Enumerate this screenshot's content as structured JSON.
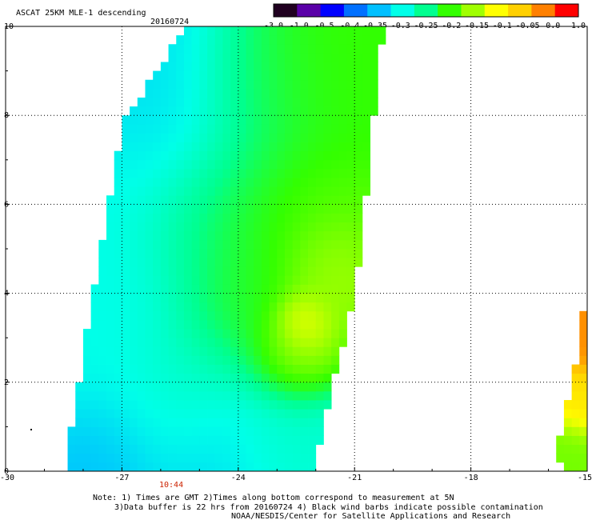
{
  "chart_data": {
    "type": "heatmap",
    "title": "ASCAT 25KM MLE-1 descending",
    "date": "20160724",
    "xlim": [
      -30,
      -15
    ],
    "ylim": [
      0,
      10
    ],
    "x_ticks": [
      "-30",
      "-27",
      "-24",
      "-21",
      "-18",
      "-15"
    ],
    "y_ticks": [
      "0",
      "2",
      "4",
      "6",
      "8",
      "10"
    ],
    "grid": true,
    "colorbar": {
      "ticks": [
        "-3.0",
        "-1.0",
        "-0.5",
        "-0.4",
        "-0.35",
        "-0.3",
        "-0.25",
        "-0.2",
        "-0.15",
        "-0.1",
        "-0.05",
        "0.0",
        "1.0"
      ],
      "colors": [
        "#200020",
        "#5a00a8",
        "#0000ff",
        "#0070ff",
        "#00c0ff",
        "#00ffe8",
        "#00ff90",
        "#33ff00",
        "#a0ff00",
        "#ffff00",
        "#ffd000",
        "#ff8000",
        "#ff0000"
      ]
    },
    "time_label": "10:44",
    "swaths": [
      {
        "name": "main descending swath",
        "polygon": [
          [
            -26.8,
            -0.1
          ],
          [
            -22.1,
            -0.1
          ],
          [
            -20.96,
            4.1
          ],
          [
            -20.3,
            9.6
          ],
          [
            -20.1,
            10.1
          ],
          [
            -25.3,
            10.1
          ],
          [
            -27.0,
            7.8
          ],
          [
            -28.4,
            0.5
          ],
          [
            -28.4,
            -0.1
          ]
        ],
        "field": [
          {
            "x": -26.2,
            "y": 5.7,
            "v": -0.3,
            "r": 2.5
          },
          {
            "x": -25.8,
            "y": 8.3,
            "v": -0.33,
            "r": 1.8
          },
          {
            "x": -27.5,
            "y": 2.5,
            "v": -0.3,
            "r": 2.5
          },
          {
            "x": -24.5,
            "y": 0.5,
            "v": -0.33,
            "r": 2.0
          },
          {
            "x": -27.8,
            "y": 0.2,
            "v": -0.36,
            "r": 1.3
          },
          {
            "x": -25.3,
            "y": 1.9,
            "v": -0.27,
            "r": 1.4
          },
          {
            "x": -23.5,
            "y": 8.4,
            "v": -0.22,
            "r": 1.6
          },
          {
            "x": -21.5,
            "y": 8.8,
            "v": -0.2,
            "r": 1.5
          },
          {
            "x": -24.4,
            "y": 5.5,
            "v": -0.2,
            "r": 1.6
          },
          {
            "x": -22.5,
            "y": 5.5,
            "v": -0.18,
            "r": 1.6
          },
          {
            "x": -24.0,
            "y": 3.4,
            "v": -0.19,
            "r": 1.4
          },
          {
            "x": -22.4,
            "y": 3.4,
            "v": -0.08,
            "r": 0.55
          },
          {
            "x": -22.7,
            "y": 2.6,
            "v": -0.13,
            "r": 0.9
          },
          {
            "x": -21.8,
            "y": 4.5,
            "v": -0.14,
            "r": 0.9
          },
          {
            "x": -23.0,
            "y": 0.6,
            "v": -0.27,
            "r": 1.2
          }
        ]
      },
      {
        "name": "eastern swath edge",
        "polygon": [
          [
            -15.3,
            -0.1
          ],
          [
            -14.9,
            -0.1
          ],
          [
            -14.9,
            4.9
          ],
          [
            -15.15,
            3.2
          ],
          [
            -15.4,
            2.0
          ],
          [
            -15.7,
            0.8
          ],
          [
            -15.9,
            0.2
          ]
        ],
        "field": [
          {
            "x": -15.0,
            "y": 3.6,
            "v": -0.01,
            "r": 1.2
          },
          {
            "x": -15.3,
            "y": 1.6,
            "v": -0.08,
            "r": 0.6
          },
          {
            "x": -15.6,
            "y": 0.5,
            "v": -0.17,
            "r": 0.6
          }
        ]
      }
    ],
    "notes": [
      "Note: 1) Times are GMT 2)Times along bottom correspond to measurement at 5N",
      "3)Data buffer is 22 hrs from 20160724 4) Black wind barbs indicate possible contamination",
      "NOAA/NESDIS/Center for Satellite Applications and Research"
    ]
  }
}
